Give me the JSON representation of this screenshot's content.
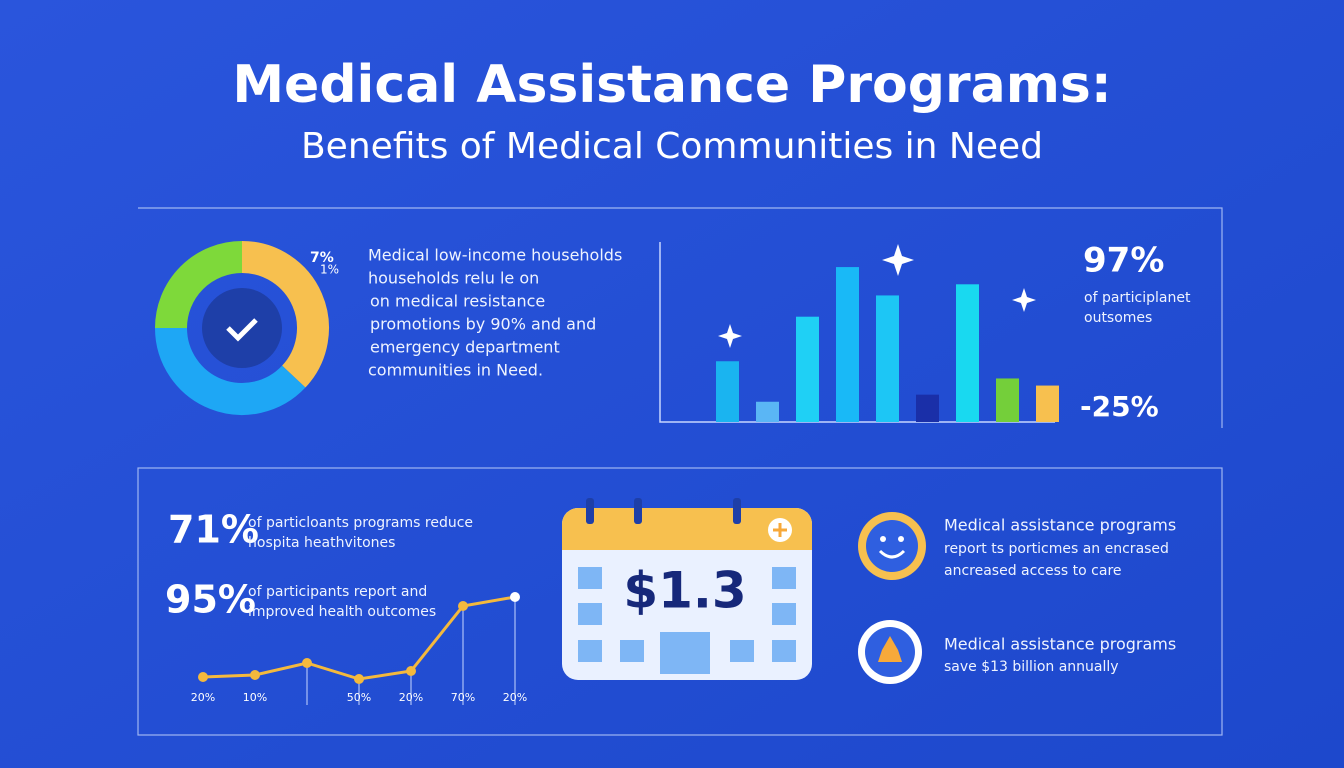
{
  "header": {
    "title": "Medical Assistance Programs:",
    "subtitle": "Benefits of Medical Communities in Need"
  },
  "donut": {
    "labels": [
      "7%",
      "1%"
    ],
    "segments": [
      {
        "value": 37,
        "color": "#f7c04f"
      },
      {
        "value": 38,
        "color": "#1ea7f5"
      },
      {
        "value": 25,
        "color": "#7ed93a"
      }
    ]
  },
  "summary": {
    "lines": [
      "Medical low-income households",
      "households relu le on",
      "on medical resistance",
      "promotions by 90% and and",
      "emergency department",
      "communities in Need."
    ]
  },
  "bars": {
    "ylim": [
      0,
      160
    ],
    "values": [
      60,
      20,
      104,
      153,
      125,
      27,
      136,
      43,
      36
    ],
    "colors": [
      "#1ab4f0",
      "#5ab6f5",
      "#1fd0f5",
      "#19b9f7",
      "#1dc6f5",
      "#1a2fa8",
      "#19d9f0",
      "#74cf3a",
      "#f7c04f"
    ]
  },
  "stats": {
    "top_value": "97%",
    "top_text": [
      "of participlanet",
      "outsomes"
    ],
    "bottom_value": "-25%"
  },
  "lower": {
    "stat1": {
      "value": "71%",
      "text": [
        "of particloants programs reduce",
        "hospita heathvitones"
      ]
    },
    "stat2": {
      "value": "95%",
      "text": [
        "of participants report and",
        "improved health outcomes"
      ]
    },
    "line": {
      "ylim": [
        0,
        110
      ],
      "categories": [
        "20%",
        "10%",
        null,
        "50%",
        "20%",
        "70%",
        "20%"
      ],
      "values": [
        23,
        25,
        37,
        21,
        29,
        94,
        103
      ],
      "color": "#f4b93d"
    },
    "calendar": "$1.3",
    "items": [
      {
        "text": [
          "Medical assistance programs",
          "report ts porticmes an encrased",
          "ancreased access to care"
        ]
      },
      {
        "text": [
          "Medical assistance programs",
          "save $13 billion annually"
        ]
      }
    ]
  }
}
